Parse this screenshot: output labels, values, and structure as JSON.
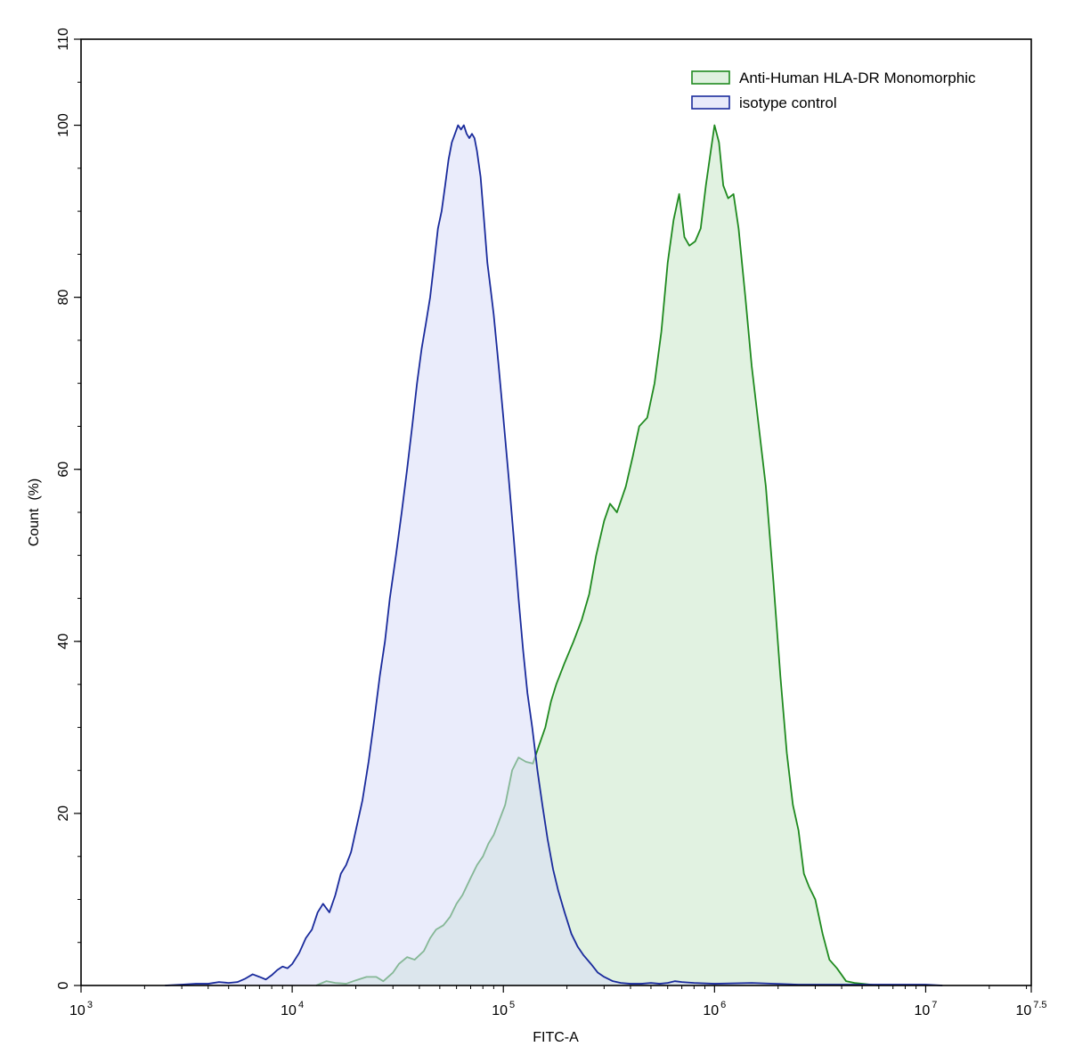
{
  "chart_data": {
    "type": "area",
    "title": "",
    "xlabel": "FITC-A",
    "ylabel": "Count  (%)",
    "x_scale": "log10",
    "xlim": [
      1000,
      31622776.6
    ],
    "ylim": [
      0,
      110
    ],
    "grid": false,
    "legend_position": "top-right",
    "x_ticks": [
      {
        "base": "10",
        "exp": "3",
        "value": 1000
      },
      {
        "base": "10",
        "exp": "4",
        "value": 10000
      },
      {
        "base": "10",
        "exp": "5",
        "value": 100000
      },
      {
        "base": "10",
        "exp": "6",
        "value": 1000000
      },
      {
        "base": "10",
        "exp": "7",
        "value": 10000000
      },
      {
        "base": "10",
        "exp": "7.5",
        "value": 31622776.6
      }
    ],
    "y_ticks": [
      {
        "label": "0",
        "value": 0
      },
      {
        "label": "20",
        "value": 20
      },
      {
        "label": "40",
        "value": 40
      },
      {
        "label": "60",
        "value": 60
      },
      {
        "label": "80",
        "value": 80
      },
      {
        "label": "100",
        "value": 100
      },
      {
        "label": "110",
        "value": 110
      }
    ],
    "series": [
      {
        "name": "Anti-Human HLA-DR Monomorphic",
        "line_color": "#1f8a1f",
        "fill_color": "#c9e8c9",
        "points": [
          [
            13000,
            0
          ],
          [
            14500,
            0.5
          ],
          [
            16000,
            0.3
          ],
          [
            18000,
            0.2
          ],
          [
            20000,
            0.6
          ],
          [
            22500,
            1.0
          ],
          [
            25000,
            1.0
          ],
          [
            27000,
            0.5
          ],
          [
            30000,
            1.5
          ],
          [
            32000,
            2.5
          ],
          [
            35000,
            3.3
          ],
          [
            38000,
            3.0
          ],
          [
            42000,
            4.0
          ],
          [
            45000,
            5.5
          ],
          [
            48000,
            6.5
          ],
          [
            52000,
            7.0
          ],
          [
            56000,
            8.0
          ],
          [
            60000,
            9.5
          ],
          [
            64000,
            10.5
          ],
          [
            70000,
            12.5
          ],
          [
            75000,
            14.0
          ],
          [
            80000,
            15.0
          ],
          [
            85000,
            16.5
          ],
          [
            90000,
            17.5
          ],
          [
            95000,
            19.0
          ],
          [
            102000,
            21.0
          ],
          [
            110000,
            25.0
          ],
          [
            118000,
            26.5
          ],
          [
            128000,
            26.0
          ],
          [
            138000,
            25.8
          ],
          [
            148000,
            28.0
          ],
          [
            158000,
            30.0
          ],
          [
            168000,
            33.0
          ],
          [
            178000,
            35.0
          ],
          [
            195000,
            37.5
          ],
          [
            215000,
            40.0
          ],
          [
            235000,
            42.5
          ],
          [
            255000,
            45.5
          ],
          [
            275000,
            50.0
          ],
          [
            300000,
            54.0
          ],
          [
            320000,
            56.0
          ],
          [
            345000,
            55.0
          ],
          [
            380000,
            58.0
          ],
          [
            410000,
            61.5
          ],
          [
            440000,
            65.0
          ],
          [
            480000,
            66.0
          ],
          [
            520000,
            70.0
          ],
          [
            560000,
            76.0
          ],
          [
            600000,
            84.0
          ],
          [
            640000,
            89.0
          ],
          [
            680000,
            92.0
          ],
          [
            720000,
            87.0
          ],
          [
            760000,
            86.0
          ],
          [
            810000,
            86.5
          ],
          [
            860000,
            88.0
          ],
          [
            910000,
            93.0
          ],
          [
            960000,
            97.0
          ],
          [
            1000000,
            100.0
          ],
          [
            1050000,
            98.0
          ],
          [
            1100000,
            93.0
          ],
          [
            1160000,
            91.5
          ],
          [
            1230000,
            92.0
          ],
          [
            1300000,
            88.0
          ],
          [
            1400000,
            80.0
          ],
          [
            1500000,
            72.0
          ],
          [
            1620000,
            65.0
          ],
          [
            1750000,
            58.0
          ],
          [
            1900000,
            47.0
          ],
          [
            2050000,
            36.0
          ],
          [
            2200000,
            27.0
          ],
          [
            2350000,
            21.0
          ],
          [
            2500000,
            18.0
          ],
          [
            2650000,
            13.0
          ],
          [
            2800000,
            11.5
          ],
          [
            3000000,
            10.0
          ],
          [
            3250000,
            6.0
          ],
          [
            3500000,
            3.0
          ],
          [
            3800000,
            2.0
          ],
          [
            4200000,
            0.5
          ],
          [
            4600000,
            0.3
          ],
          [
            5000000,
            0.2
          ],
          [
            6000000,
            0
          ]
        ]
      },
      {
        "name": "isotype control",
        "line_color": "#1a2b9c",
        "fill_color": "#d9dcf7",
        "points": [
          [
            2500,
            0
          ],
          [
            3000,
            0.1
          ],
          [
            3500,
            0.2
          ],
          [
            4000,
            0.2
          ],
          [
            4500,
            0.4
          ],
          [
            5000,
            0.3
          ],
          [
            5500,
            0.4
          ],
          [
            6000,
            0.8
          ],
          [
            6500,
            1.3
          ],
          [
            7000,
            1.0
          ],
          [
            7500,
            0.7
          ],
          [
            8000,
            1.2
          ],
          [
            8500,
            1.8
          ],
          [
            9000,
            2.2
          ],
          [
            9500,
            2.0
          ],
          [
            10000,
            2.5
          ],
          [
            10800,
            3.8
          ],
          [
            11600,
            5.5
          ],
          [
            12400,
            6.5
          ],
          [
            13200,
            8.5
          ],
          [
            14000,
            9.5
          ],
          [
            15000,
            8.5
          ],
          [
            16000,
            10.5
          ],
          [
            17000,
            13.0
          ],
          [
            18000,
            14.0
          ],
          [
            19000,
            15.5
          ],
          [
            20000,
            18.0
          ],
          [
            21500,
            21.5
          ],
          [
            23000,
            26.0
          ],
          [
            24500,
            31.0
          ],
          [
            26000,
            36.0
          ],
          [
            27500,
            40.0
          ],
          [
            29000,
            45.0
          ],
          [
            31000,
            50.0
          ],
          [
            33000,
            55.0
          ],
          [
            35000,
            60.0
          ],
          [
            37000,
            65.0
          ],
          [
            39000,
            70.0
          ],
          [
            41000,
            74.0
          ],
          [
            43000,
            77.0
          ],
          [
            45000,
            80.0
          ],
          [
            47000,
            84.0
          ],
          [
            49000,
            88.0
          ],
          [
            51000,
            90.0
          ],
          [
            53000,
            93.0
          ],
          [
            55000,
            96.0
          ],
          [
            57000,
            98.0
          ],
          [
            59000,
            99.0
          ],
          [
            61000,
            100.0
          ],
          [
            63000,
            99.5
          ],
          [
            65000,
            100.0
          ],
          [
            67000,
            99.0
          ],
          [
            69000,
            98.5
          ],
          [
            71000,
            99.0
          ],
          [
            73000,
            98.5
          ],
          [
            75000,
            97.0
          ],
          [
            78000,
            94.0
          ],
          [
            81000,
            89.0
          ],
          [
            84000,
            84.0
          ],
          [
            87000,
            81.0
          ],
          [
            90000,
            78.0
          ],
          [
            95000,
            72.0
          ],
          [
            100000,
            66.0
          ],
          [
            106000,
            59.0
          ],
          [
            112000,
            52.0
          ],
          [
            118000,
            45.0
          ],
          [
            124000,
            39.0
          ],
          [
            130000,
            34.0
          ],
          [
            137000,
            30.0
          ],
          [
            145000,
            25.0
          ],
          [
            153000,
            21.0
          ],
          [
            162000,
            17.0
          ],
          [
            172000,
            13.5
          ],
          [
            182000,
            11.0
          ],
          [
            195000,
            8.5
          ],
          [
            210000,
            6.0
          ],
          [
            225000,
            4.5
          ],
          [
            240000,
            3.5
          ],
          [
            260000,
            2.5
          ],
          [
            280000,
            1.5
          ],
          [
            300000,
            1.0
          ],
          [
            330000,
            0.5
          ],
          [
            360000,
            0.3
          ],
          [
            400000,
            0.2
          ],
          [
            450000,
            0.2
          ],
          [
            500000,
            0.3
          ],
          [
            550000,
            0.2
          ],
          [
            600000,
            0.3
          ],
          [
            650000,
            0.5
          ],
          [
            700000,
            0.4
          ],
          [
            800000,
            0.3
          ],
          [
            1000000,
            0.2
          ],
          [
            1500000,
            0.3
          ],
          [
            2500000,
            0.1
          ],
          [
            10000000,
            0.1
          ],
          [
            12000000,
            0
          ]
        ]
      }
    ]
  }
}
